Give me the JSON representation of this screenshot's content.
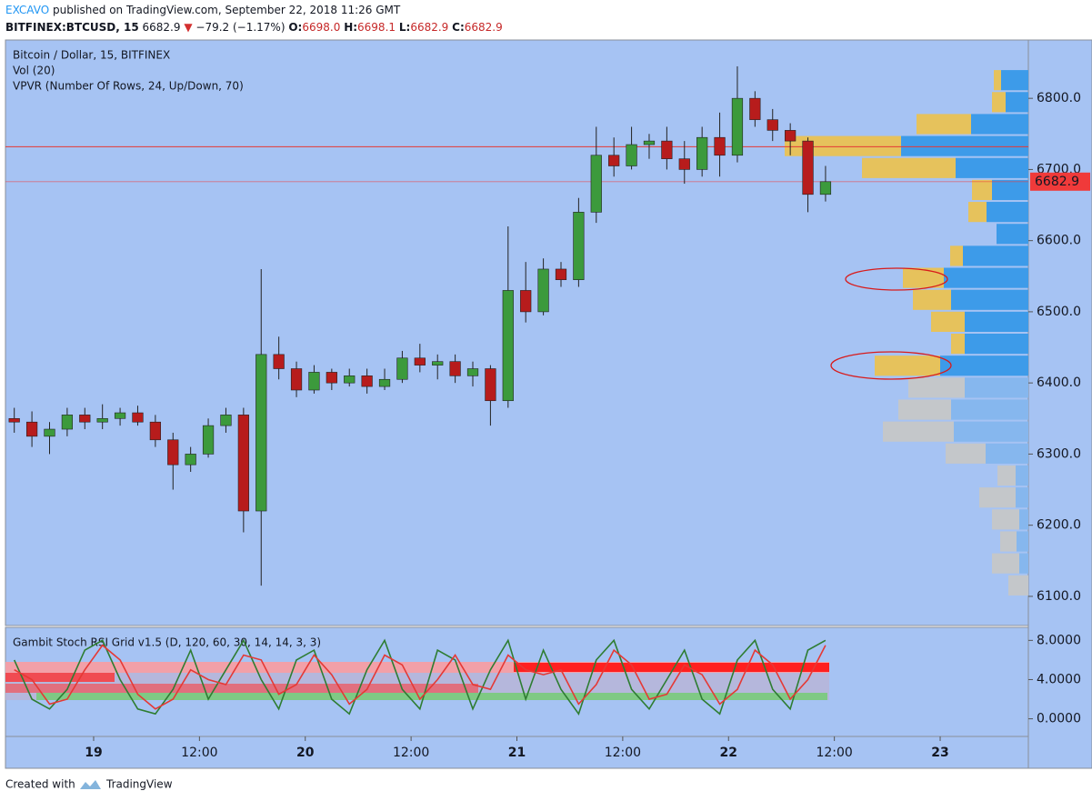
{
  "header": {
    "author": "EXCAVO",
    "published": "published on TradingView.com, September 22, 2018 11:26 GMT",
    "symbol": "BITFINEX:BTCUSD, 15",
    "last": "6682.9",
    "change": "−79.2 (−1.17%)",
    "ohlc": [
      {
        "label": "O:",
        "value": "6698.0"
      },
      {
        "label": "H:",
        "value": "6698.1"
      },
      {
        "label": "L:",
        "value": "6682.9"
      },
      {
        "label": "C:",
        "value": "6682.9"
      }
    ]
  },
  "footer": {
    "created": "Created with",
    "brand": "TradingView"
  },
  "chart_data": [
    {
      "type": "candlestick",
      "legend": [
        "Bitcoin / Dollar, 15, BITFINEX",
        "Vol (20)",
        "VPVR (Number Of Rows, 24, Up/Down, 70)"
      ],
      "open": [
        6350,
        6345,
        6325,
        6335,
        6355,
        6345,
        6350,
        6358,
        6345,
        6320,
        6285,
        6300,
        6340,
        6355,
        6220,
        6440,
        6420,
        6390,
        6415,
        6400,
        6410,
        6395,
        6405,
        6435,
        6425,
        6430,
        6410,
        6420,
        6375,
        6530,
        6500,
        6560,
        6545,
        6640,
        6720,
        6705,
        6735,
        6740,
        6715,
        6700,
        6745,
        6720,
        6800,
        6770,
        6755,
        6740,
        6665
      ],
      "high": [
        6365,
        6360,
        6345,
        6365,
        6365,
        6370,
        6365,
        6368,
        6355,
        6330,
        6310,
        6350,
        6365,
        6365,
        6560,
        6465,
        6430,
        6425,
        6420,
        6420,
        6420,
        6420,
        6445,
        6455,
        6440,
        6440,
        6430,
        6425,
        6620,
        6570,
        6575,
        6570,
        6660,
        6760,
        6745,
        6760,
        6750,
        6760,
        6740,
        6760,
        6780,
        6845,
        6810,
        6785,
        6765,
        6745,
        6705
      ],
      "low": [
        6330,
        6310,
        6300,
        6325,
        6335,
        6335,
        6340,
        6340,
        6310,
        6250,
        6275,
        6295,
        6330,
        6190,
        6115,
        6405,
        6380,
        6385,
        6390,
        6395,
        6385,
        6390,
        6400,
        6415,
        6405,
        6400,
        6395,
        6340,
        6365,
        6485,
        6495,
        6535,
        6535,
        6625,
        6690,
        6700,
        6715,
        6700,
        6680,
        6690,
        6690,
        6710,
        6760,
        6740,
        6720,
        6640,
        6655
      ],
      "close": [
        6345,
        6325,
        6335,
        6355,
        6345,
        6350,
        6358,
        6345,
        6320,
        6285,
        6300,
        6340,
        6355,
        6220,
        6440,
        6420,
        6390,
        6415,
        6400,
        6410,
        6395,
        6405,
        6435,
        6425,
        6430,
        6410,
        6420,
        6375,
        6530,
        6500,
        6560,
        6545,
        6640,
        6720,
        6705,
        6735,
        6740,
        6715,
        6700,
        6745,
        6720,
        6800,
        6770,
        6755,
        6740,
        6665,
        6682.9
      ],
      "up_color": "#3c9a3c",
      "down_color": "#b71c1c",
      "xlim": [
        0,
        58
      ],
      "xticks": [
        {
          "value": 5,
          "label": "19"
        },
        {
          "value": 11,
          "label": "12:00"
        },
        {
          "value": 17,
          "label": "20"
        },
        {
          "value": 23,
          "label": "12:00"
        },
        {
          "value": 29,
          "label": "21"
        },
        {
          "value": 35,
          "label": "12:00"
        },
        {
          "value": 41,
          "label": "22"
        },
        {
          "value": 47,
          "label": "12:00"
        },
        {
          "value": 53,
          "label": "23"
        }
      ],
      "ylim": [
        6059,
        6882
      ],
      "yticks": [
        {
          "value": 6100,
          "label": "6100.0"
        },
        {
          "value": 6200,
          "label": "6200.0"
        },
        {
          "value": 6300,
          "label": "6300.0"
        },
        {
          "value": 6400,
          "label": "6400.0"
        },
        {
          "value": 6500,
          "label": "6500.0"
        },
        {
          "value": 6600,
          "label": "6600.0"
        },
        {
          "value": 6700,
          "label": "6700.0"
        },
        {
          "value": 6800,
          "label": "6800.0"
        }
      ],
      "hlines": [
        {
          "value": 6732,
          "color": "#e53935"
        }
      ],
      "last_price": {
        "value": 6682.9,
        "label": "6682.9",
        "color": "#f03a3a"
      },
      "vpvr": {
        "row_range": [
          6100,
          6841
        ],
        "up": [
          0,
          10,
          13,
          10,
          14,
          14,
          47,
          82,
          85,
          70,
          97,
          70,
          70,
          85,
          93,
          72,
          35,
          46,
          40,
          80,
          140,
          63,
          25,
          30
        ],
        "down": [
          22,
          30,
          18,
          30,
          40,
          20,
          44,
          78,
          58,
          62,
          72,
          15,
          37,
          42,
          45,
          14,
          0,
          20,
          22,
          103,
          128,
          60,
          15,
          8
        ],
        "value_area_rows": [
          10,
          23
        ],
        "up_color": "#3d9be9",
        "down_color": "#e6c25c",
        "up_outside_color": "#86b7ee",
        "down_outside_color": "#c4c7ca"
      }
    },
    {
      "type": "line",
      "title": "Gambit Stoch RSI Grid v1.5 (D, 120, 60, 30, 14, 14, 3, 3)",
      "series": [
        {
          "color": "#2e7d32",
          "values": [
            6,
            2,
            1,
            3,
            7,
            8,
            4,
            1,
            0.5,
            3,
            7,
            2,
            5,
            8,
            4,
            1,
            6,
            7,
            2,
            0.5,
            5,
            8,
            3,
            1,
            7,
            6,
            1,
            5,
            8,
            2,
            7,
            3,
            0.5,
            6,
            8,
            3,
            1,
            4,
            7,
            2,
            0.5,
            6,
            8,
            3,
            1,
            7,
            8
          ]
        },
        {
          "color": "#e53935",
          "values": [
            5,
            4,
            1.5,
            2,
            5,
            7.5,
            6,
            2.5,
            1,
            2,
            5,
            4,
            3.5,
            6.5,
            6,
            2.5,
            3.5,
            6.5,
            4.5,
            1.5,
            3,
            6.5,
            5.5,
            2,
            4,
            6.5,
            3.5,
            3,
            6.5,
            5,
            4.5,
            5,
            1.5,
            3.5,
            7,
            5.5,
            2,
            2.5,
            5.5,
            4.5,
            1.5,
            3,
            7,
            5.5,
            2,
            4,
            7.5
          ]
        }
      ],
      "xlim": [
        0,
        58
      ],
      "ylim": [
        -1.8,
        9.33
      ],
      "yticks": [
        {
          "value": 0,
          "label": "0.0000"
        },
        {
          "value": 4,
          "label": "4.0000"
        },
        {
          "value": 8,
          "label": "8.0000"
        }
      ]
    }
  ]
}
